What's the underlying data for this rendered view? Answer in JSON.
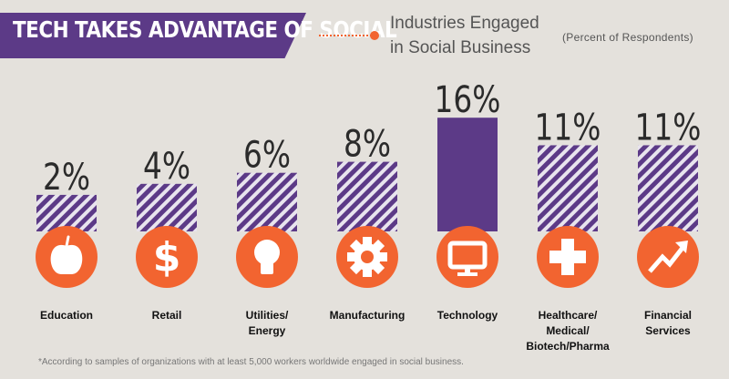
{
  "banner": {
    "title": "TECH TAKES ADVANTAGE OF SOCIAL"
  },
  "subtitle": {
    "line1": "Industries Engaged",
    "line2": "in Social Business"
  },
  "note": "(Percent of Respondents)",
  "footnote": "*According to samples of organizations with at least 5,000 workers worldwide engaged in social business.",
  "colors": {
    "purple": "#5c3a87",
    "orange": "#f26430",
    "background": "#e4e1dc",
    "stripe_light": "#e8e4ee"
  },
  "chart_data": {
    "type": "bar",
    "title": "Industries Engaged in Social Business",
    "subtitle": "(Percent of Respondents)",
    "categories": [
      "Education",
      "Retail",
      "Utilities/\nEnergy",
      "Manufacturing",
      "Technology",
      "Healthcare/\nMedical/\nBiotech/Pharma",
      "Financial\nServices"
    ],
    "values": [
      2,
      4,
      6,
      8,
      16,
      11,
      11
    ],
    "value_labels": [
      "2%",
      "4%",
      "6%",
      "8%",
      "16%",
      "11%",
      "11%"
    ],
    "highlight": "Technology",
    "icons": [
      "apple-icon",
      "dollar-icon",
      "lightbulb-icon",
      "gear-icon",
      "monitor-icon",
      "medical-cross-icon",
      "trend-arrow-icon"
    ],
    "ylim": [
      0,
      16
    ],
    "grid": false,
    "legend": "none"
  }
}
